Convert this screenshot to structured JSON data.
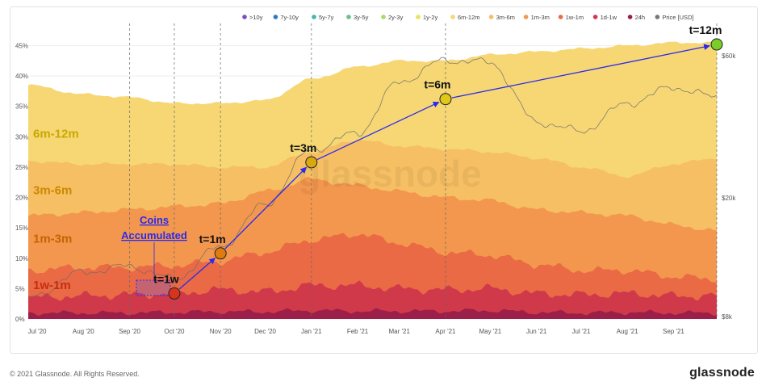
{
  "legend": [
    {
      "name": ">10y",
      "color": "#7a4fbf"
    },
    {
      "name": "7y-10y",
      "color": "#2f79c0"
    },
    {
      "name": "5y-7y",
      "color": "#3fb8b0"
    },
    {
      "name": "3y-5y",
      "color": "#69c28a"
    },
    {
      "name": "2y-3y",
      "color": "#a8d96a"
    },
    {
      "name": "1y-2y",
      "color": "#e8e35a"
    },
    {
      "name": "6m-12m",
      "color": "#f6d774"
    },
    {
      "name": "3m-6m",
      "color": "#f6bf64"
    },
    {
      "name": "1m-3m",
      "color": "#f3974e"
    },
    {
      "name": "1w-1m",
      "color": "#ea6a45"
    },
    {
      "name": "1d-1w",
      "color": "#d0394a"
    },
    {
      "name": "24h",
      "color": "#9b1f48"
    },
    {
      "name": "Price [USD]",
      "color": "#777777"
    }
  ],
  "chart_data": {
    "type": "area",
    "x": [
      "2020-06-25",
      "2020-08-01",
      "2020-09-01",
      "2020-10-01",
      "2020-11-01",
      "2020-12-01",
      "2021-01-01",
      "2021-02-01",
      "2021-03-01",
      "2021-04-01",
      "2021-05-01",
      "2021-06-01",
      "2021-07-01",
      "2021-08-01",
      "2021-09-01",
      "2021-09-30"
    ],
    "x_ticks": [
      "Jul '20",
      "Aug '20",
      "Sep '20",
      "Oct '20",
      "Nov '20",
      "Dec '20",
      "Jan '21",
      "Feb '21",
      "Mar '21",
      "Apr '21",
      "May '21",
      "Jun '21",
      "Jul '21",
      "Aug '21",
      "Sep '21"
    ],
    "y_ticks": [
      "0%",
      "5%",
      "10%",
      "15%",
      "20%",
      "25%",
      "30%",
      "35%",
      "40%",
      "45%"
    ],
    "y2_ticks": [
      "$8k",
      "$20k",
      "$60k"
    ],
    "ylim": [
      0,
      46
    ],
    "stacked_upper_bounds_pct": {
      "24h": [
        1.0,
        1.0,
        1.0,
        1.1,
        1.2,
        1.2,
        1.4,
        1.3,
        1.3,
        1.3,
        1.4,
        1.1,
        1.0,
        1.1,
        1.0,
        1.0
      ],
      "1d-1w": [
        3.5,
        3.8,
        4.0,
        4.2,
        4.8,
        4.5,
        5.5,
        5.5,
        5.0,
        4.8,
        5.0,
        4.2,
        4.0,
        4.2,
        3.8,
        3.8
      ],
      "1w-1m": [
        8.0,
        8.5,
        8.5,
        8.8,
        9.5,
        11.0,
        13.0,
        14.0,
        12.5,
        11.0,
        10.5,
        9.0,
        8.0,
        8.0,
        7.0,
        6.5
      ],
      "1m-3m": [
        17.0,
        17.5,
        18.0,
        18.5,
        19.0,
        21.0,
        23.0,
        22.0,
        21.0,
        20.0,
        19.5,
        18.0,
        17.5,
        17.0,
        15.5,
        14.5
      ],
      "3m-6m": [
        26.0,
        25.5,
        25.5,
        25.5,
        25.0,
        25.0,
        27.5,
        29.5,
        28.5,
        28.0,
        27.5,
        26.5,
        25.0,
        23.5,
        25.5,
        26.5
      ],
      "6m-12m": [
        38.5,
        37.0,
        36.5,
        35.5,
        35.5,
        36.0,
        39.5,
        41.5,
        42.5,
        42.5,
        43.5,
        44.0,
        44.5,
        45.0,
        45.5,
        45.5
      ]
    },
    "price_usd": [
      9200,
      11300,
      11800,
      10700,
      13700,
      19000,
      29000,
      33000,
      49000,
      58000,
      57000,
      36000,
      33500,
      41500,
      47000,
      43500
    ],
    "annotations": [
      {
        "label": "t=1w",
        "x": "2020-10-01",
        "y": 4.2
      },
      {
        "label": "t=1m",
        "x": "2020-11-01",
        "y": 10.8
      },
      {
        "label": "t=3m",
        "x": "2021-01-01",
        "y": 25.8
      },
      {
        "label": "t=6m",
        "x": "2021-04-01",
        "y": 36.2
      },
      {
        "label": "t=12m",
        "x": "2021-09-30",
        "y": 45.2
      }
    ],
    "band_labels": [
      "6m-12m",
      "3m-6m",
      "1m-3m",
      "1w-1m"
    ],
    "callout": {
      "line1": "Coins",
      "line2": "Accumulated"
    },
    "watermark": "glassnode"
  },
  "footer": {
    "copyright": "© 2021 Glassnode. All Rights Reserved.",
    "brand": "glassnode"
  }
}
